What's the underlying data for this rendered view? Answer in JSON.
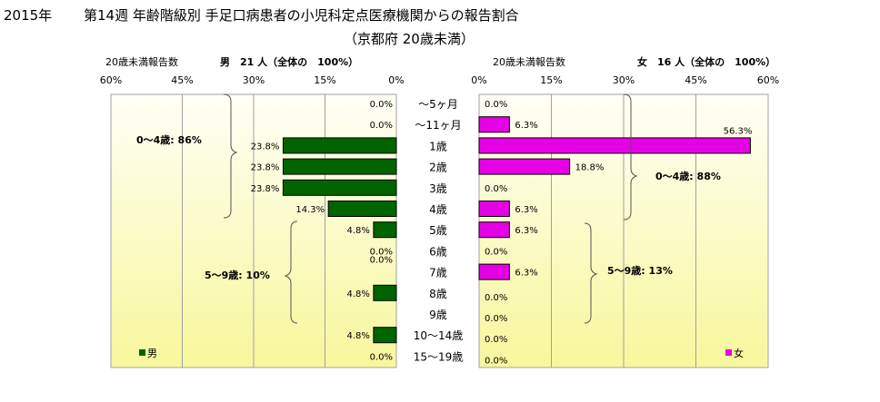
{
  "header": {
    "year": "2015年",
    "title": "第14週 年齢階級別 手足口病患者の小児科定点医療機関からの報告割合",
    "subtitle": "（京都府 20歳未満）"
  },
  "male_panel": {
    "report_label": "20歳未満報告数",
    "count_label": "男　21 人（全体の　100%）",
    "group_labels": [
      "0～4歳: 86%",
      "5～9歳: 10%"
    ],
    "legend_label": "男"
  },
  "female_panel": {
    "report_label": "20歳未満報告数",
    "count_label": "女　16 人（全体の　100%）",
    "group_labels": [
      "0～4歳: 88%",
      "5～9歳: 13%"
    ],
    "legend_label": "女"
  },
  "colors": {
    "male": "#006400",
    "female": "#e600e6",
    "plot_top": "#fffff6",
    "plot_bottom": "#f7f79c",
    "grid": "#a0a0a0"
  },
  "chart_data": [
    {
      "type": "bar",
      "orientation": "horizontal",
      "direction": "right-to-left",
      "categories": [
        "～5ヶ月",
        "～11ヶ月",
        "1歳",
        "2歳",
        "3歳",
        "4歳",
        "5歳",
        "6歳",
        "7歳",
        "8歳",
        "9歳",
        "10～14歳",
        "15～19歳"
      ],
      "series": [
        {
          "name": "男",
          "values": [
            0.0,
            0.0,
            23.8,
            23.8,
            23.8,
            14.3,
            4.8,
            0.0,
            0.0,
            4.8,
            0.0,
            4.8,
            0.0
          ],
          "labels": [
            "0.0%",
            "0.0%",
            "23.8%",
            "23.8%",
            "23.8%",
            "14.3%",
            "4.8%",
            "0.0%",
            "0.0%",
            "4.8%",
            "",
            "4.8%",
            "0.0%"
          ]
        }
      ],
      "xlim": [
        0,
        60
      ],
      "ticks": [
        "60%",
        "45%",
        "30%",
        "15%",
        "0%"
      ],
      "grid": true,
      "legend": "bottom-left"
    },
    {
      "type": "bar",
      "orientation": "horizontal",
      "direction": "left-to-right",
      "categories": [
        "～5ヶ月",
        "～11ヶ月",
        "1歳",
        "2歳",
        "3歳",
        "4歳",
        "5歳",
        "6歳",
        "7歳",
        "8歳",
        "9歳",
        "10～14歳",
        "15～19歳"
      ],
      "series": [
        {
          "name": "女",
          "values": [
            0.0,
            6.3,
            56.3,
            18.8,
            0.0,
            6.3,
            6.3,
            0.0,
            6.3,
            0.0,
            0.0,
            0.0,
            0.0
          ],
          "labels": [
            "0.0%",
            "6.3%",
            "56.3%",
            "18.8%",
            "0.0%",
            "6.3%",
            "6.3%",
            "0.0%",
            "6.3%",
            "0.0%",
            "0.0%",
            "0.0%",
            "0.0%"
          ]
        }
      ],
      "xlim": [
        0,
        60
      ],
      "ticks": [
        "0%",
        "15%",
        "30%",
        "45%",
        "60%"
      ],
      "grid": true,
      "legend": "bottom-right"
    }
  ]
}
